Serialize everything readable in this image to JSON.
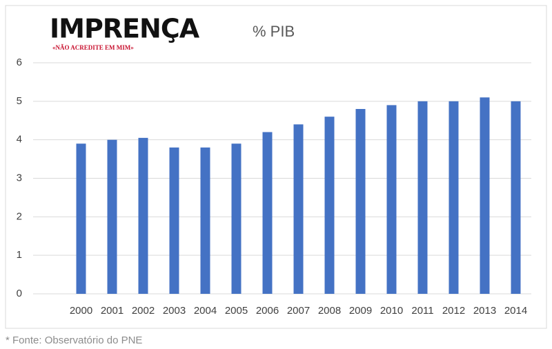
{
  "logo": {
    "name": "IMPRENÇA",
    "tagline": "«NÃO ACREDITE EM MIM»"
  },
  "chart_data": {
    "type": "bar",
    "title": "% PIB",
    "categories": [
      "2000",
      "2001",
      "2002",
      "2003",
      "2004",
      "2005",
      "2006",
      "2007",
      "2008",
      "2009",
      "2010",
      "2011",
      "2012",
      "2013",
      "2014"
    ],
    "values": [
      3.9,
      4.0,
      4.05,
      3.8,
      3.8,
      3.9,
      4.2,
      4.4,
      4.6,
      4.8,
      4.9,
      5.0,
      5.0,
      5.1,
      5.0
    ],
    "color": "#4472c4",
    "ylim": [
      0,
      6
    ],
    "yticks": [
      0,
      1,
      2,
      3,
      4,
      5,
      6
    ],
    "grid": true
  },
  "source": "* Fonte: Observatório do PNE"
}
